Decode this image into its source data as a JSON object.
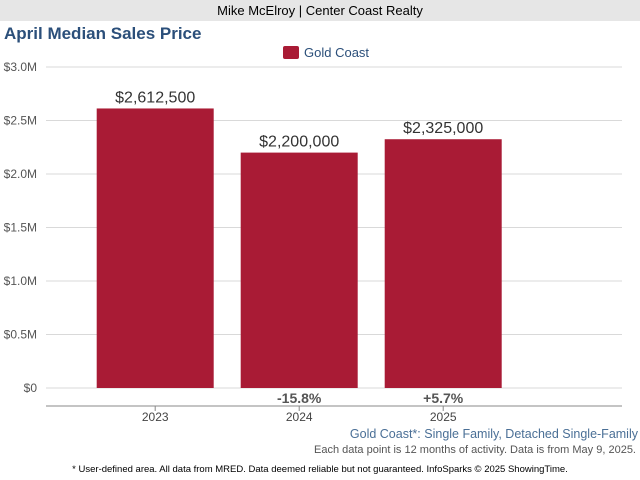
{
  "header": {
    "agent": "Mike McElroy | Center Coast Realty"
  },
  "chart_data": {
    "type": "bar",
    "title": "April Median Sales Price",
    "categories": [
      "2023",
      "2024",
      "2025"
    ],
    "series": [
      {
        "name": "Gold Coast",
        "values": [
          2612500,
          2200000,
          2325000
        ],
        "color": "#a91b35"
      }
    ],
    "data_labels": [
      "$2,612,500",
      "$2,200,000",
      "$2,325,000"
    ],
    "change_labels": [
      "",
      "-15.8%",
      "+5.7%"
    ],
    "yticks": [
      0,
      500000,
      1000000,
      1500000,
      2000000,
      2500000,
      3000000
    ],
    "ytick_labels": [
      "$0",
      "$0.5M",
      "$1.0M",
      "$1.5M",
      "$2.0M",
      "$2.5M",
      "$3.0M"
    ],
    "ylim": [
      0,
      3000000
    ],
    "legend_position": "top-center",
    "grid": true
  },
  "subtitle": "Gold Coast*: Single Family, Detached Single-Family",
  "note": "Each data point is 12 months of activity. Data is from May 9, 2025.",
  "footnote": "* User-defined area. All data from MRED. Data deemed reliable but not guaranteed. InfoSparks © 2025 ShowingTime."
}
